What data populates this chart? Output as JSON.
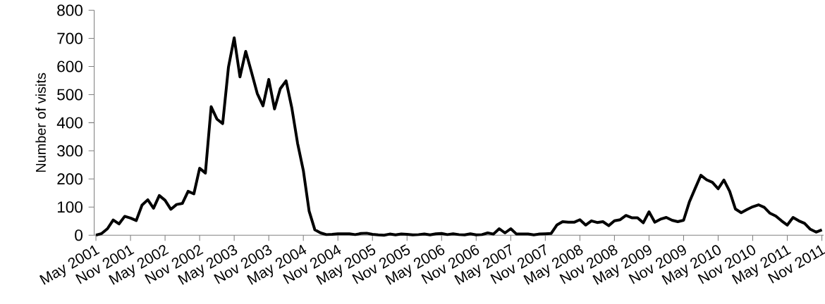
{
  "chart_data": {
    "type": "line",
    "ylabel": "Number of visits",
    "categories": [
      "May 2001",
      null,
      null,
      null,
      null,
      null,
      "Nov 2001",
      null,
      null,
      null,
      null,
      null,
      "May 2002",
      null,
      null,
      null,
      null,
      null,
      "Nov 2002",
      null,
      null,
      null,
      null,
      null,
      "May 2003",
      null,
      null,
      null,
      null,
      null,
      "Nov 2003",
      null,
      null,
      null,
      null,
      null,
      "May 2004",
      null,
      null,
      null,
      null,
      null,
      "Nov 2004",
      null,
      null,
      null,
      null,
      null,
      "May 2005",
      null,
      null,
      null,
      null,
      null,
      "Nov 2005",
      null,
      null,
      null,
      null,
      null,
      "May 2006",
      null,
      null,
      null,
      null,
      null,
      "Nov 2006",
      null,
      null,
      null,
      null,
      null,
      "May 2007",
      null,
      null,
      null,
      null,
      null,
      "Nov 2007",
      null,
      null,
      null,
      null,
      null,
      "May 2008",
      null,
      null,
      null,
      null,
      null,
      "Nov 2008",
      null,
      null,
      null,
      null,
      null,
      "May 2009",
      null,
      null,
      null,
      null,
      null,
      "Nov 2009",
      null,
      null,
      null,
      null,
      null,
      "May 2010",
      null,
      null,
      null,
      null,
      null,
      "Nov 2010",
      null,
      null,
      null,
      null,
      null,
      "May 2011",
      null,
      null,
      null,
      null,
      null,
      "Nov 2011"
    ],
    "values": [
      0,
      6,
      23,
      54,
      40,
      67,
      61,
      52,
      107,
      126,
      96,
      141,
      124,
      92,
      109,
      113,
      156,
      147,
      238,
      221,
      457,
      413,
      397,
      597,
      702,
      563,
      654,
      580,
      504,
      460,
      554,
      449,
      521,
      549,
      453,
      327,
      230,
      86,
      19,
      8,
      2,
      3,
      5,
      5,
      5,
      2,
      6,
      7,
      3,
      1,
      0,
      4,
      1,
      4,
      3,
      1,
      2,
      4,
      1,
      5,
      6,
      2,
      5,
      2,
      1,
      5,
      1,
      2,
      8,
      4,
      23,
      8,
      23,
      4,
      4,
      4,
      1,
      4,
      5,
      6,
      36,
      48,
      46,
      46,
      55,
      36,
      51,
      45,
      48,
      34,
      51,
      55,
      70,
      62,
      62,
      44,
      83,
      46,
      57,
      63,
      53,
      48,
      53,
      118,
      166,
      213,
      197,
      188,
      165,
      196,
      156,
      93,
      80,
      91,
      101,
      108,
      99,
      78,
      68,
      51,
      36,
      63,
      51,
      42,
      21,
      11,
      19
    ],
    "color": "#000000",
    "line_style": "solid",
    "ylim": [
      0,
      800
    ],
    "yticks": [
      0,
      100,
      200,
      300,
      400,
      500,
      600,
      700,
      800
    ]
  }
}
